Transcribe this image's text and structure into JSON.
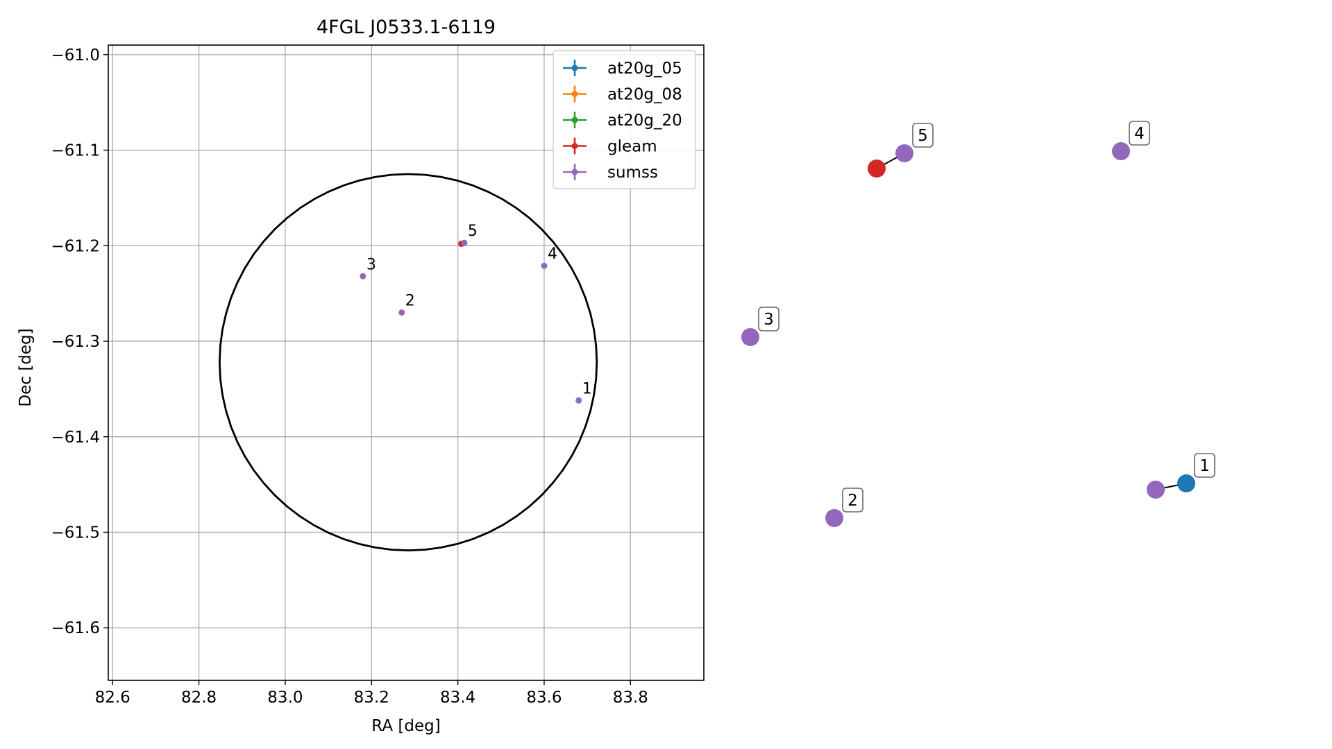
{
  "chart_data": [
    {
      "type": "scatter",
      "title": "4FGL J0533.1-6119",
      "xlabel": "RA [deg]",
      "ylabel": "Dec [deg]",
      "xlim": [
        82.59,
        83.97
      ],
      "ylim": [
        -61.655,
        -60.99
      ],
      "xticks": [
        82.6,
        82.8,
        83.0,
        83.2,
        83.4,
        83.6,
        83.8
      ],
      "xtick_labels": [
        "82.6",
        "82.8",
        "83.0",
        "83.2",
        "83.4",
        "83.6",
        "83.8"
      ],
      "yticks": [
        -61.0,
        -61.1,
        -61.2,
        -61.3,
        -61.4,
        -61.5,
        -61.6
      ],
      "ytick_labels": [
        "−61.0",
        "−61.1",
        "−61.2",
        "−61.3",
        "−61.4",
        "−61.5",
        "−61.6"
      ],
      "grid": true,
      "legend": {
        "placement": "top-right",
        "entries": [
          {
            "label": "at20g_05",
            "color": "#1f77b4"
          },
          {
            "label": "at20g_08",
            "color": "#ff7f0e"
          },
          {
            "label": "at20g_20",
            "color": "#2ca02c"
          },
          {
            "label": "gleam",
            "color": "#d62728"
          },
          {
            "label": "sumss",
            "color": "#9467bd"
          }
        ]
      },
      "ellipse": {
        "center": [
          83.285,
          -61.322
        ],
        "semi_axis_ra": 0.437,
        "semi_axis_dec": 0.197,
        "color": "#000000"
      },
      "series": [
        {
          "name": "gleam",
          "color": "#d62728",
          "points": [
            {
              "x": 83.408,
              "y": -61.198
            }
          ]
        },
        {
          "name": "sumss",
          "color": "#9467bd",
          "points": [
            {
              "x": 83.68,
              "y": -61.362
            },
            {
              "x": 83.27,
              "y": -61.27
            },
            {
              "x": 83.18,
              "y": -61.232
            },
            {
              "x": 83.6,
              "y": -61.221
            },
            {
              "x": 83.415,
              "y": -61.197
            }
          ]
        }
      ],
      "labels": [
        {
          "text": "1",
          "x": 83.68,
          "y": -61.362
        },
        {
          "text": "2",
          "x": 83.27,
          "y": -61.27
        },
        {
          "text": "3",
          "x": 83.18,
          "y": -61.232
        },
        {
          "text": "4",
          "x": 83.6,
          "y": -61.221
        },
        {
          "text": "5",
          "x": 83.415,
          "y": -61.197
        }
      ]
    },
    {
      "type": "scatter",
      "axes_visible": false,
      "links": [
        {
          "from": "sumss-1",
          "to": "at20g-1"
        },
        {
          "from": "gleam-5",
          "to": "sumss-5"
        }
      ],
      "markers": [
        {
          "id": "gleam-5",
          "series": "gleam",
          "color": "#d62728"
        },
        {
          "id": "sumss-5",
          "series": "sumss",
          "color": "#9467bd",
          "label": "5"
        },
        {
          "id": "sumss-4",
          "series": "sumss",
          "color": "#9467bd",
          "label": "4"
        },
        {
          "id": "sumss-3",
          "series": "sumss",
          "color": "#9467bd",
          "label": "3"
        },
        {
          "id": "sumss-2",
          "series": "sumss",
          "color": "#9467bd",
          "label": "2"
        },
        {
          "id": "sumss-1",
          "series": "sumss",
          "color": "#9467bd"
        },
        {
          "id": "at20g-1",
          "series": "at20g_05",
          "color": "#1f77b4",
          "label": "1"
        }
      ]
    }
  ]
}
